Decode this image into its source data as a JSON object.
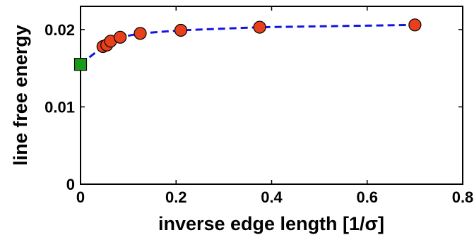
{
  "chart_data": {
    "type": "scatter",
    "xlabel": "inverse edge length [1/σ]",
    "ylabel": "line free energy",
    "xlim": [
      0,
      0.8
    ],
    "ylim": [
      0,
      0.023
    ],
    "x_ticks": [
      0,
      0.2,
      0.4,
      0.6,
      0.8
    ],
    "x_tick_labels": [
      "0",
      "0.2",
      "0.4",
      "0.6",
      "0.8"
    ],
    "y_ticks": [
      0,
      0.01,
      0.02
    ],
    "y_tick_labels": [
      "0",
      "0.01",
      "0.02"
    ],
    "grid": false,
    "legend": "none",
    "series": [
      {
        "marker": "circle",
        "color": "#e8401c",
        "x": [
          0.047,
          0.055,
          0.063,
          0.083,
          0.125,
          0.21,
          0.375,
          0.7
        ],
        "y": [
          0.0178,
          0.018,
          0.0185,
          0.019,
          0.0195,
          0.0199,
          0.0203,
          0.0206
        ]
      },
      {
        "marker": "square",
        "color": "#1a9a1a",
        "x": [
          0
        ],
        "y": [
          0.0155
        ]
      },
      {
        "line": "dashed",
        "color": "#1414e0",
        "x": [
          0,
          0.047,
          0.055,
          0.063,
          0.083,
          0.125,
          0.21,
          0.375,
          0.7
        ],
        "y": [
          0.0155,
          0.0178,
          0.018,
          0.0185,
          0.019,
          0.0195,
          0.0199,
          0.0203,
          0.0206
        ]
      }
    ]
  }
}
